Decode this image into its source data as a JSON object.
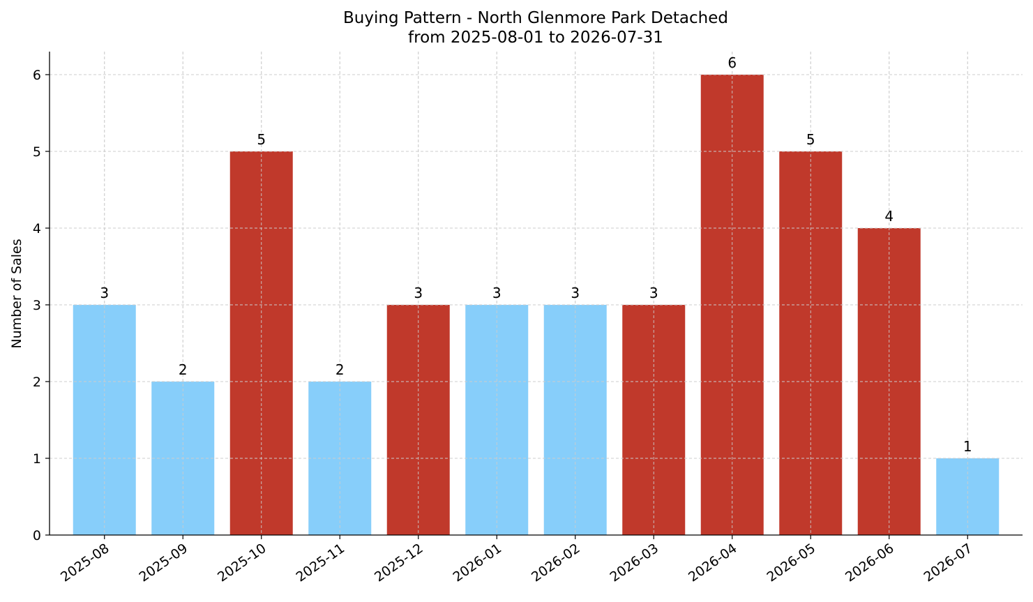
{
  "chart_data": {
    "type": "bar",
    "title_line1": "Buying Pattern - North Glenmore Park Detached",
    "title_line2": "from 2025-08-01 to 2026-07-31",
    "xlabel": "",
    "ylabel": "Number of Sales",
    "categories": [
      "2025-08",
      "2025-09",
      "2025-10",
      "2025-11",
      "2025-12",
      "2026-01",
      "2026-02",
      "2026-03",
      "2026-04",
      "2026-05",
      "2026-06",
      "2026-07"
    ],
    "values": [
      3,
      2,
      5,
      2,
      3,
      3,
      3,
      3,
      6,
      5,
      4,
      1
    ],
    "bar_color_keys": [
      "light",
      "light",
      "dark",
      "light",
      "dark",
      "light",
      "light",
      "dark",
      "dark",
      "dark",
      "dark",
      "light"
    ],
    "colors": {
      "light": "#87cefa",
      "dark": "#c0392b"
    },
    "ylim": [
      0,
      6.3
    ],
    "yticks": [
      0,
      1,
      2,
      3,
      4,
      5,
      6
    ],
    "grid": true,
    "legend": "none"
  }
}
